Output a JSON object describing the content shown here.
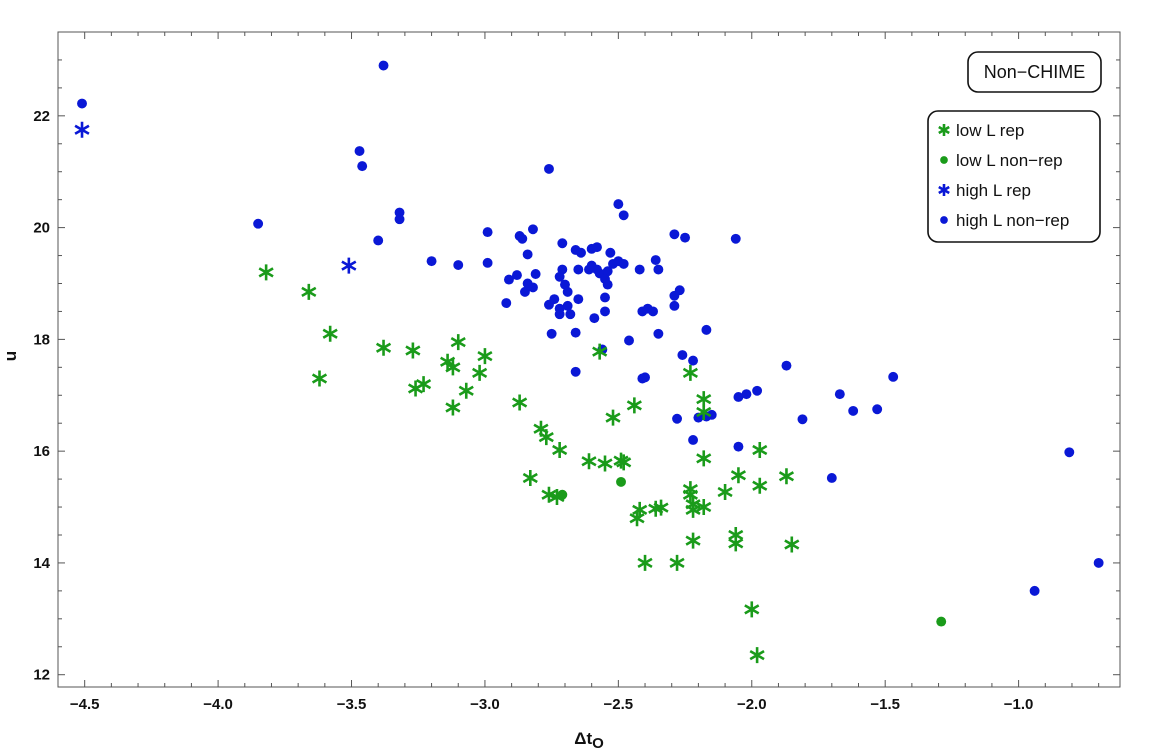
{
  "chart_data": {
    "type": "scatter",
    "title": "Non−CHIME",
    "xlabel": "Δt",
    "xlabel_sub": "O",
    "ylabel": "u",
    "xlim": [
      -4.6,
      -0.62
    ],
    "ylim": [
      11.78,
      23.5
    ],
    "x_ticks": [
      -4.5,
      -4.0,
      -3.5,
      -3.0,
      -2.5,
      -2.0,
      -1.5,
      -1.0
    ],
    "x_tick_labels": [
      "−4.5",
      "−4.0",
      "−3.5",
      "−3.0",
      "−2.5",
      "−2.0",
      "−1.5",
      "−1.0"
    ],
    "y_ticks": [
      12,
      14,
      16,
      18,
      20,
      22
    ],
    "y_tick_labels": [
      "12",
      "14",
      "16",
      "18",
      "20",
      "22"
    ],
    "grid": false,
    "legend_position": "top-right",
    "series": [
      {
        "name": "low L rep",
        "color": "#1a9b1a",
        "marker": "star6",
        "points": [
          [
            -3.82,
            19.2
          ],
          [
            -3.66,
            18.85
          ],
          [
            -3.58,
            18.1
          ],
          [
            -3.62,
            17.3
          ],
          [
            -3.38,
            17.85
          ],
          [
            -3.27,
            17.8
          ],
          [
            -3.26,
            17.12
          ],
          [
            -3.23,
            17.2
          ],
          [
            -3.14,
            17.6
          ],
          [
            -3.12,
            17.5
          ],
          [
            -3.1,
            17.95
          ],
          [
            -3.02,
            17.4
          ],
          [
            -3.0,
            17.7
          ],
          [
            -3.07,
            17.08
          ],
          [
            -3.12,
            16.78
          ],
          [
            -2.87,
            16.87
          ],
          [
            -2.79,
            16.4
          ],
          [
            -2.77,
            16.25
          ],
          [
            -2.72,
            16.02
          ],
          [
            -2.83,
            15.52
          ],
          [
            -2.76,
            15.22
          ],
          [
            -2.73,
            15.18
          ],
          [
            -2.57,
            17.78
          ],
          [
            -2.61,
            15.82
          ],
          [
            -2.55,
            15.78
          ],
          [
            -2.52,
            16.6
          ],
          [
            -2.49,
            15.83
          ],
          [
            -2.48,
            15.8
          ],
          [
            -2.44,
            16.82
          ],
          [
            -2.42,
            14.95
          ],
          [
            -2.4,
            14.0
          ],
          [
            -2.36,
            14.97
          ],
          [
            -2.34,
            14.99
          ],
          [
            -2.43,
            14.8
          ],
          [
            -2.28,
            14.0
          ],
          [
            -2.23,
            15.32
          ],
          [
            -2.23,
            15.22
          ],
          [
            -2.22,
            15.05
          ],
          [
            -2.22,
            14.95
          ],
          [
            -2.18,
            15.0
          ],
          [
            -2.18,
            16.93
          ],
          [
            -2.18,
            16.7
          ],
          [
            -2.18,
            15.87
          ],
          [
            -2.23,
            17.4
          ],
          [
            -2.22,
            14.4
          ],
          [
            -2.1,
            15.27
          ],
          [
            -2.05,
            15.57
          ],
          [
            -2.06,
            14.5
          ],
          [
            -2.06,
            14.35
          ],
          [
            -1.97,
            16.02
          ],
          [
            -1.97,
            15.38
          ],
          [
            -1.87,
            15.55
          ],
          [
            -1.85,
            14.33
          ],
          [
            -2.0,
            13.17
          ],
          [
            -1.98,
            12.35
          ]
        ]
      },
      {
        "name": "low L non−rep",
        "color": "#1a9b1a",
        "marker": "dot",
        "points": [
          [
            -2.71,
            15.22
          ],
          [
            -2.49,
            15.45
          ],
          [
            -1.29,
            12.95
          ]
        ]
      },
      {
        "name": "high L rep",
        "color": "#0a18d6",
        "marker": "star6",
        "points": [
          [
            -4.51,
            21.75
          ],
          [
            -3.51,
            19.32
          ]
        ]
      },
      {
        "name": "high L non−rep",
        "color": "#0a18d6",
        "marker": "dot",
        "points": [
          [
            -4.51,
            22.22
          ],
          [
            -3.38,
            22.9
          ],
          [
            -3.47,
            21.37
          ],
          [
            -3.46,
            21.1
          ],
          [
            -3.85,
            20.07
          ],
          [
            -3.32,
            20.27
          ],
          [
            -3.32,
            20.15
          ],
          [
            -3.4,
            19.77
          ],
          [
            -3.2,
            19.4
          ],
          [
            -3.1,
            19.33
          ],
          [
            -2.99,
            19.92
          ],
          [
            -2.99,
            19.37
          ],
          [
            -2.76,
            21.05
          ],
          [
            -2.5,
            20.42
          ],
          [
            -2.48,
            20.22
          ],
          [
            -2.82,
            19.97
          ],
          [
            -2.87,
            19.85
          ],
          [
            -2.86,
            19.8
          ],
          [
            -2.84,
            19.52
          ],
          [
            -2.88,
            19.15
          ],
          [
            -2.91,
            19.07
          ],
          [
            -2.81,
            19.17
          ],
          [
            -2.84,
            19.0
          ],
          [
            -2.85,
            18.85
          ],
          [
            -2.82,
            18.93
          ],
          [
            -2.92,
            18.65
          ],
          [
            -2.76,
            18.62
          ],
          [
            -2.75,
            18.1
          ],
          [
            -2.74,
            18.72
          ],
          [
            -2.71,
            19.72
          ],
          [
            -2.71,
            19.25
          ],
          [
            -2.72,
            19.12
          ],
          [
            -2.7,
            18.98
          ],
          [
            -2.69,
            18.85
          ],
          [
            -2.72,
            18.55
          ],
          [
            -2.72,
            18.45
          ],
          [
            -2.69,
            18.6
          ],
          [
            -2.68,
            18.45
          ],
          [
            -2.66,
            19.6
          ],
          [
            -2.64,
            19.55
          ],
          [
            -2.65,
            19.25
          ],
          [
            -2.65,
            18.72
          ],
          [
            -2.66,
            18.12
          ],
          [
            -2.6,
            19.62
          ],
          [
            -2.58,
            19.65
          ],
          [
            -2.61,
            19.25
          ],
          [
            -2.6,
            19.32
          ],
          [
            -2.58,
            19.25
          ],
          [
            -2.57,
            19.18
          ],
          [
            -2.54,
            19.22
          ],
          [
            -2.55,
            19.08
          ],
          [
            -2.54,
            18.98
          ],
          [
            -2.55,
            18.75
          ],
          [
            -2.59,
            18.38
          ],
          [
            -2.55,
            18.5
          ],
          [
            -2.53,
            19.55
          ],
          [
            -2.52,
            19.35
          ],
          [
            -2.5,
            19.4
          ],
          [
            -2.48,
            19.35
          ],
          [
            -2.42,
            19.25
          ],
          [
            -2.41,
            18.5
          ],
          [
            -2.39,
            18.55
          ],
          [
            -2.37,
            18.5
          ],
          [
            -2.36,
            19.42
          ],
          [
            -2.35,
            19.25
          ],
          [
            -2.35,
            18.1
          ],
          [
            -2.46,
            17.98
          ],
          [
            -2.56,
            17.82
          ],
          [
            -2.66,
            17.42
          ],
          [
            -2.41,
            17.3
          ],
          [
            -2.4,
            17.32
          ],
          [
            -2.29,
            19.88
          ],
          [
            -2.25,
            19.82
          ],
          [
            -2.06,
            19.8
          ],
          [
            -2.29,
            18.78
          ],
          [
            -2.27,
            18.88
          ],
          [
            -2.29,
            18.6
          ],
          [
            -2.17,
            18.17
          ],
          [
            -2.26,
            17.72
          ],
          [
            -2.22,
            17.62
          ],
          [
            -2.28,
            16.58
          ],
          [
            -2.2,
            16.6
          ],
          [
            -2.17,
            16.62
          ],
          [
            -2.15,
            16.65
          ],
          [
            -2.22,
            16.2
          ],
          [
            -2.05,
            16.08
          ],
          [
            -2.05,
            16.97
          ],
          [
            -2.02,
            17.02
          ],
          [
            -1.98,
            17.08
          ],
          [
            -1.87,
            17.53
          ],
          [
            -1.81,
            16.57
          ],
          [
            -1.67,
            17.02
          ],
          [
            -1.62,
            16.72
          ],
          [
            -1.53,
            16.75
          ],
          [
            -1.47,
            17.33
          ],
          [
            -1.7,
            15.52
          ],
          [
            -0.81,
            15.98
          ],
          [
            -0.94,
            13.5
          ],
          [
            -0.7,
            14.0
          ]
        ]
      }
    ]
  }
}
